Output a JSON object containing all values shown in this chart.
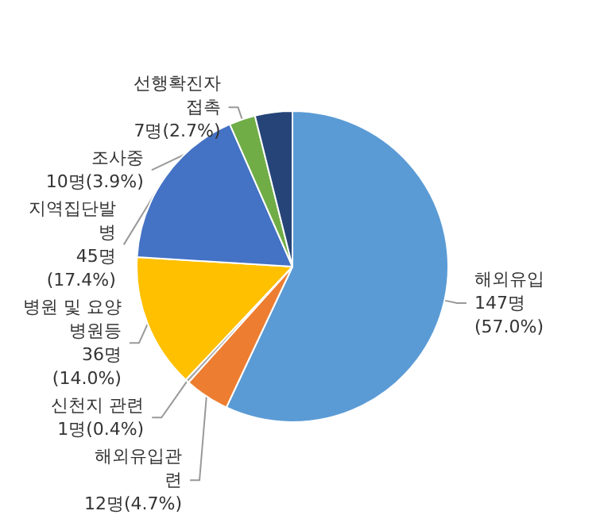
{
  "chart_data": {
    "type": "pie",
    "categories": [
      "해외유입",
      "해외유입관련",
      "신천지 관련",
      "병원 및 요양병원등",
      "지역집단발병",
      "선행확진자접촉",
      "조사중"
    ],
    "values": [
      147,
      12,
      1,
      36,
      45,
      7,
      10
    ],
    "value_labels": [
      "147명(57.0%)",
      "12명(4.7%)",
      "1명(0.4%)",
      "36명(14.0%)",
      "45명(17.4%)",
      "7명(2.7%)",
      "10명(3.9%)"
    ],
    "colors": [
      "#5b9bd5",
      "#ed7d31",
      "#a5a5a5",
      "#ffc000",
      "#4472c4",
      "#70ad47",
      "#264478"
    ],
    "legend": false
  }
}
